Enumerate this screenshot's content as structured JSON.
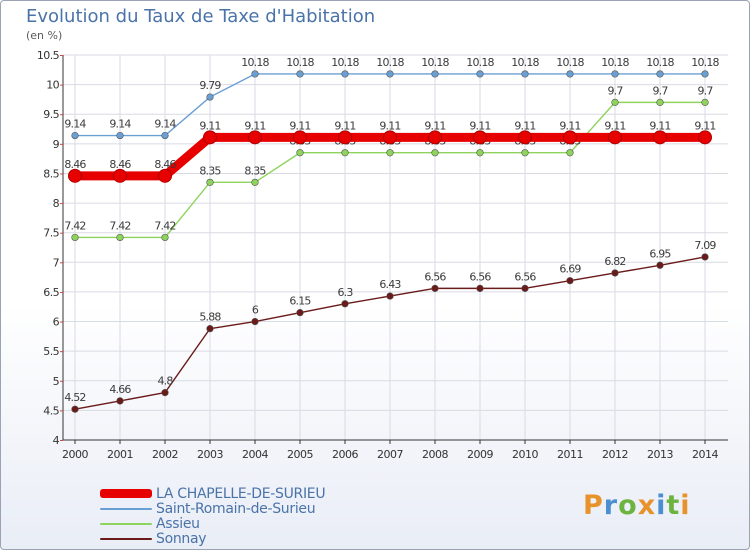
{
  "header": {
    "title": "Evolution du Taux de Taxe d'Habitation",
    "unit": "(en %)"
  },
  "logo": {
    "text": "Proxiti",
    "colors": [
      "#e8922c",
      "#4a8fd0",
      "#6cb33f",
      "#e8922c",
      "#4a8fd0",
      "#6cb33f",
      "#e8922c"
    ]
  },
  "chart_data": {
    "type": "line",
    "title": "Evolution du Taux de Taxe d'Habitation",
    "ylabel": "(en %)",
    "x": [
      "2000",
      "2001",
      "2002",
      "2003",
      "2004",
      "2005",
      "2006",
      "2007",
      "2008",
      "2009",
      "2010",
      "2011",
      "2012",
      "2013",
      "2014"
    ],
    "ylim": [
      4,
      10.5
    ],
    "yticks": [
      "4",
      "4.5",
      "5",
      "5.5",
      "6",
      "6.5",
      "7",
      "7.5",
      "8",
      "8.5",
      "9",
      "9.5",
      "10",
      "10.5"
    ],
    "grid": true,
    "legend_position": "bottom",
    "series": [
      {
        "name": "LA CHAPELLE-DE-SURIEU",
        "color": "#e60000",
        "values": [
          8.46,
          8.46,
          8.46,
          9.11,
          9.11,
          9.11,
          9.11,
          9.11,
          9.11,
          9.11,
          9.11,
          9.11,
          9.11,
          9.11,
          9.11
        ],
        "labels": [
          "8.46",
          "8.46",
          "8.46",
          "9.11",
          "9.11",
          "9.11",
          "9.11",
          "9.11",
          "9.11",
          "9.11",
          "9.11",
          "9.11",
          "9.11",
          "9.11",
          "9.11"
        ]
      },
      {
        "name": "Saint-Romain-de-Surieu",
        "color": "#6a9fd4",
        "values": [
          9.14,
          9.14,
          9.14,
          9.79,
          10.18,
          10.18,
          10.18,
          10.18,
          10.18,
          10.18,
          10.18,
          10.18,
          10.18,
          10.18,
          10.18
        ],
        "labels": [
          "9.14",
          "9.14",
          "9.14",
          "9.79",
          "10.18",
          "10.18",
          "10.18",
          "10.18",
          "10.18",
          "10.18",
          "10.18",
          "10.18",
          "10.18",
          "10.18",
          "10.18"
        ]
      },
      {
        "name": "Assieu",
        "color": "#8ed35c",
        "values": [
          7.42,
          7.42,
          7.42,
          8.35,
          8.35,
          8.85,
          8.85,
          8.85,
          8.85,
          8.85,
          8.85,
          8.85,
          9.7,
          9.7,
          9.7
        ],
        "labels": [
          "7.42",
          "7.42",
          "7.42",
          "8.35",
          "8.35",
          "8.85",
          "8.85",
          "8.85",
          "8.85",
          "8.85",
          "8.85",
          "8.85",
          "9.7",
          "9.7",
          "9.7"
        ]
      },
      {
        "name": "Sonnay",
        "color": "#6b1a1a",
        "values": [
          4.52,
          4.66,
          4.8,
          5.88,
          6,
          6.15,
          6.3,
          6.43,
          6.56,
          6.56,
          6.56,
          6.69,
          6.82,
          6.95,
          7.09
        ],
        "labels": [
          "4.52",
          "4.66",
          "4.8",
          "5.88",
          "6",
          "6.15",
          "6.3",
          "6.43",
          "6.56",
          "6.56",
          "6.56",
          "6.69",
          "6.82",
          "6.95",
          "7.09"
        ]
      }
    ]
  }
}
